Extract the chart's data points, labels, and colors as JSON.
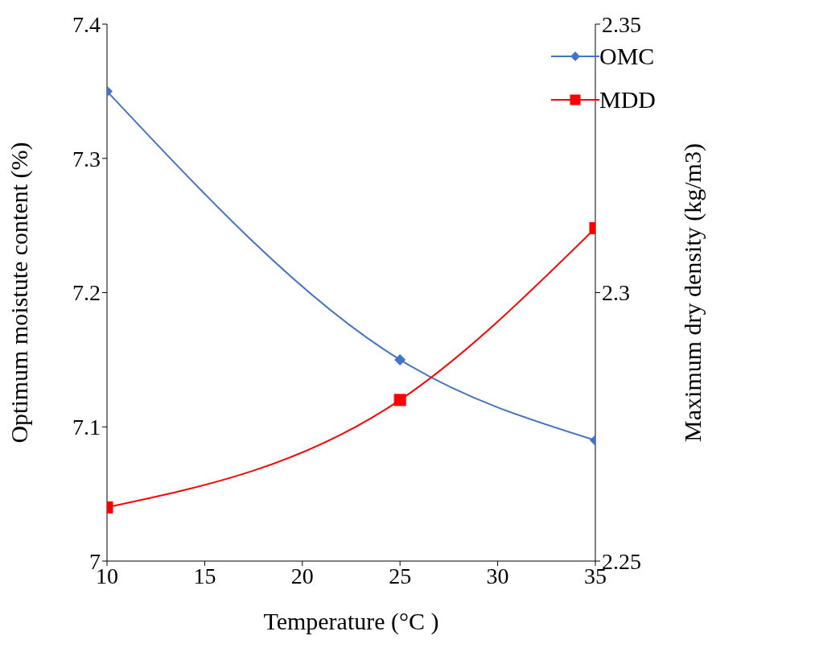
{
  "chart_data": {
    "type": "line",
    "xlabel": "Temperature (°C )",
    "ylabel": "Optimum moistute content (%)",
    "y2label": "Maximum dry density (kg/m3)",
    "x": [
      10,
      25,
      35
    ],
    "series": [
      {
        "name": "OMC",
        "color": "#4472c4",
        "values": [
          7.35,
          7.15,
          7.09
        ],
        "marker": "diamond"
      },
      {
        "name": "MDD",
        "color": "#ff0000",
        "values": [
          2.26,
          2.28,
          2.312
        ],
        "axis": "y2",
        "marker": "square"
      }
    ],
    "xlim": [
      10,
      35
    ],
    "xticks": [
      10,
      15,
      20,
      25,
      30,
      35
    ],
    "ylim": [
      7,
      7.4
    ],
    "yticks": [
      7,
      7.1,
      7.2,
      7.3,
      7.4
    ],
    "y2lim": [
      2.25,
      2.35
    ],
    "y2ticks": [
      2.25,
      2.3,
      2.35
    ],
    "legend": "top right",
    "line_style": "solid",
    "grid": false
  }
}
